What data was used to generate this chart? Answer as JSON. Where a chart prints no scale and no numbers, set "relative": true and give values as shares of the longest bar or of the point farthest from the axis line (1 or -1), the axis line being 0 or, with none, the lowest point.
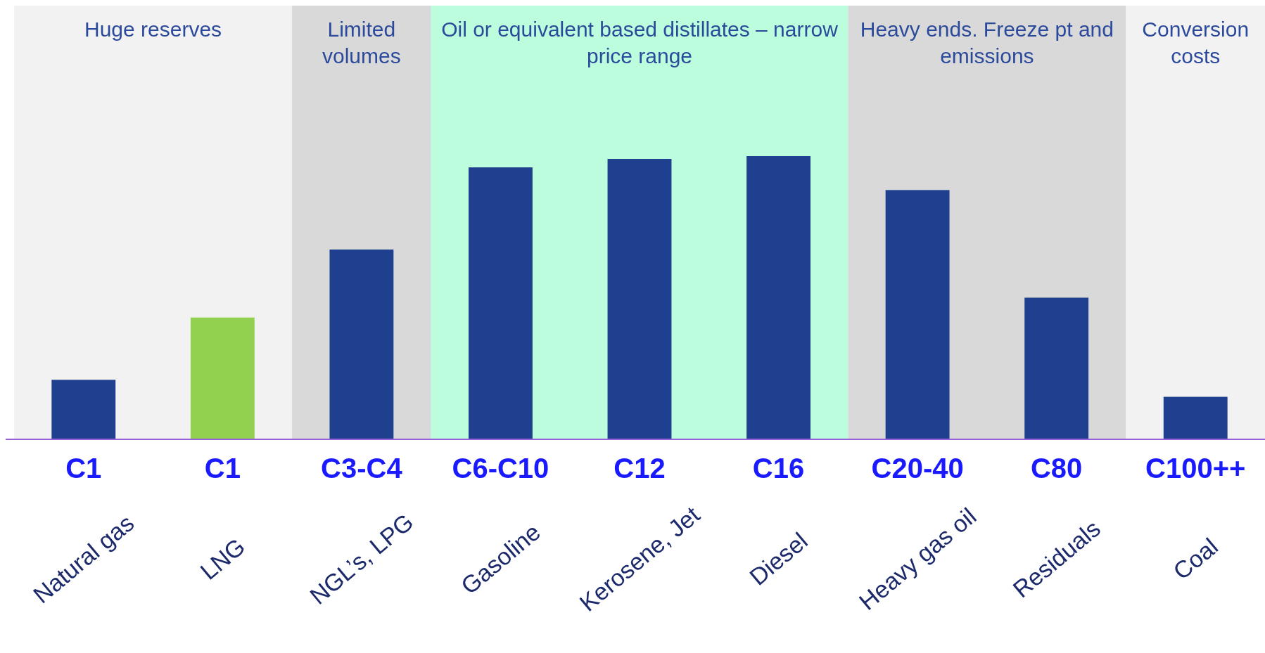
{
  "chart_data": {
    "type": "bar",
    "relative": true,
    "categories": [
      "Natural gas",
      "LNG",
      "NGL’s, LPG",
      "Gasoline",
      "Kerosene, Jet",
      "Diesel",
      "Heavy gas oil",
      "Residuals",
      "Coal"
    ],
    "values": [
      0.21,
      0.43,
      0.67,
      0.96,
      0.99,
      1,
      0.88,
      0.5,
      0.15
    ],
    "colors": [
      "#1f408e",
      "#92d050",
      "#1f408e",
      "#1f408e",
      "#1f408e",
      "#1f408e",
      "#1f408e",
      "#1f408e",
      "#1f408e"
    ],
    "bands": [
      {
        "axis": "x",
        "from": "Natural gas",
        "to": "LNG",
        "label": "Huge reserves",
        "color": "#f2f2f2"
      },
      {
        "axis": "x",
        "from": "NGL’s, LPG",
        "to": "NGL’s, LPG",
        "label": "Limited volumes",
        "color": "#d9d9d9"
      },
      {
        "axis": "x",
        "from": "Gasoline",
        "to": "Diesel",
        "label": "Oil or equivalent based distillates – narrow price range",
        "color": "#bbfddc"
      },
      {
        "axis": "x",
        "from": "Heavy gas oil",
        "to": "Residuals",
        "label": "Heavy ends. Freeze pt and emissions",
        "color": "#d9d9d9"
      },
      {
        "axis": "x",
        "from": "Coal",
        "to": "Coal",
        "label": "Conversion costs",
        "color": "#f2f2f2"
      }
    ],
    "annotations": [
      "C1",
      "C1",
      "C3-C4",
      "C6-C10",
      "C12",
      "C16",
      "C20-40",
      "C80",
      "C100++"
    ]
  }
}
